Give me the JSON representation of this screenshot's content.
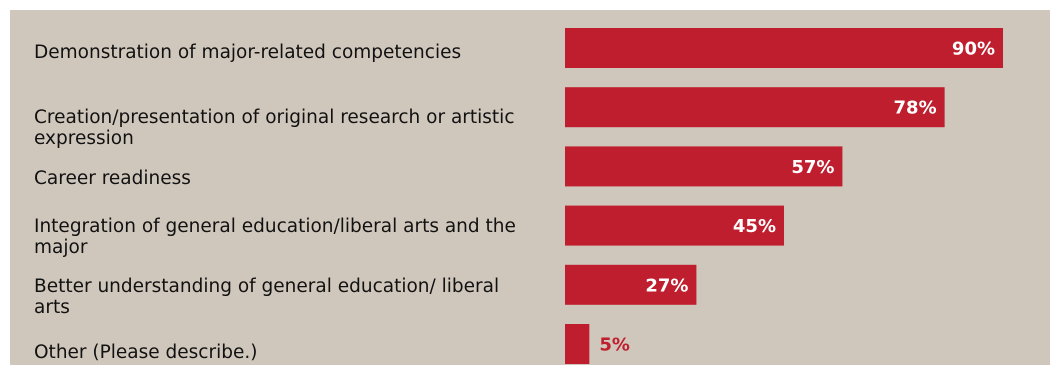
{
  "chart_data": {
    "type": "bar",
    "orientation": "horizontal",
    "categories": [
      "Demonstration of major-related competencies",
      "Creation/presentation of original research or artistic expression",
      "Career readiness",
      "Integration of general education/liberal arts and the major",
      "Better understanding of general education/ liberal arts",
      "Other (Please describe.)"
    ],
    "values": [
      90,
      78,
      57,
      45,
      27,
      5
    ],
    "value_labels": [
      "90%",
      "78%",
      "57%",
      "45%",
      "27%",
      "5%"
    ],
    "xlim": [
      0,
      100
    ],
    "title": "",
    "xlabel": "",
    "ylabel": "",
    "grid": false,
    "legend": "none"
  },
  "colors": {
    "background": "#d0c7bc",
    "bar": "#bf1e2e",
    "label_inside": "#ffffff",
    "label_outside": "#bf1e2e",
    "category_text": "#111111"
  }
}
